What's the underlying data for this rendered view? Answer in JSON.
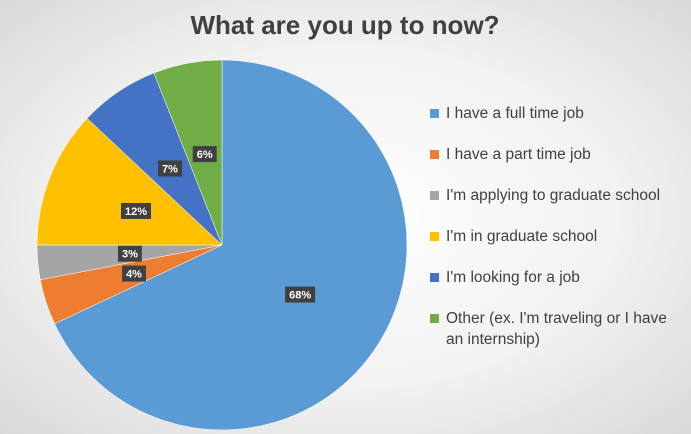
{
  "chart_data": {
    "type": "pie",
    "title": "What are you up to now?",
    "categories": [
      "I have a full time job",
      "I have a part time job",
      "I'm applying to graduate school",
      "I'm in graduate school",
      "I'm looking for a job",
      "Other (ex. I'm traveling or I have an internship)"
    ],
    "values": [
      68,
      4,
      3,
      12,
      7,
      6
    ],
    "value_labels": [
      "68%",
      "4%",
      "3%",
      "12%",
      "7%",
      "6%"
    ],
    "colors": [
      "#5b9bd5",
      "#ed7d31",
      "#a5a5a5",
      "#ffc000",
      "#4472c4",
      "#70ad47"
    ],
    "legend": "right"
  }
}
